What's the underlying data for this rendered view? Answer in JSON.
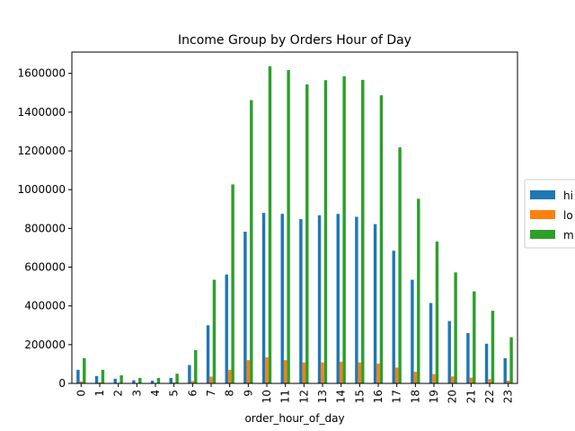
{
  "chart_data": {
    "type": "bar",
    "title": "Income Group by Orders Hour of Day",
    "xlabel": "order_hour_of_day",
    "ylabel": "",
    "ylim": [
      0,
      1710000
    ],
    "yticks": [
      0,
      200000,
      400000,
      600000,
      800000,
      1000000,
      1200000,
      1400000,
      1600000
    ],
    "categories": [
      "0",
      "1",
      "2",
      "3",
      "4",
      "5",
      "6",
      "7",
      "8",
      "9",
      "10",
      "11",
      "12",
      "13",
      "14",
      "15",
      "16",
      "17",
      "18",
      "19",
      "20",
      "21",
      "22",
      "23"
    ],
    "series": [
      {
        "name": "hi",
        "color": "#1f77b4",
        "values": [
          70000,
          38000,
          24000,
          16000,
          14000,
          28000,
          95000,
          300000,
          562000,
          783000,
          880000,
          875000,
          848000,
          868000,
          875000,
          860000,
          822000,
          685000,
          535000,
          415000,
          322000,
          260000,
          205000,
          130000
        ]
      },
      {
        "name": "lo",
        "color": "#ff7f0e",
        "values": [
          10000,
          5000,
          3000,
          2000,
          2000,
          4000,
          12000,
          35000,
          70000,
          120000,
          135000,
          120000,
          108000,
          108000,
          112000,
          108000,
          102000,
          82000,
          60000,
          48000,
          36000,
          30000,
          22000,
          14000
        ]
      },
      {
        "name": "m",
        "color": "#2ca02c",
        "values": [
          130000,
          70000,
          42000,
          28000,
          28000,
          50000,
          172000,
          535000,
          1027000,
          1462000,
          1637000,
          1617000,
          1543000,
          1565000,
          1585000,
          1567000,
          1487000,
          1218000,
          953000,
          732000,
          573000,
          475000,
          375000,
          238000
        ]
      }
    ],
    "legend": {
      "position": "right",
      "entries": [
        "hi",
        "lo",
        "m"
      ]
    },
    "grid": false
  }
}
